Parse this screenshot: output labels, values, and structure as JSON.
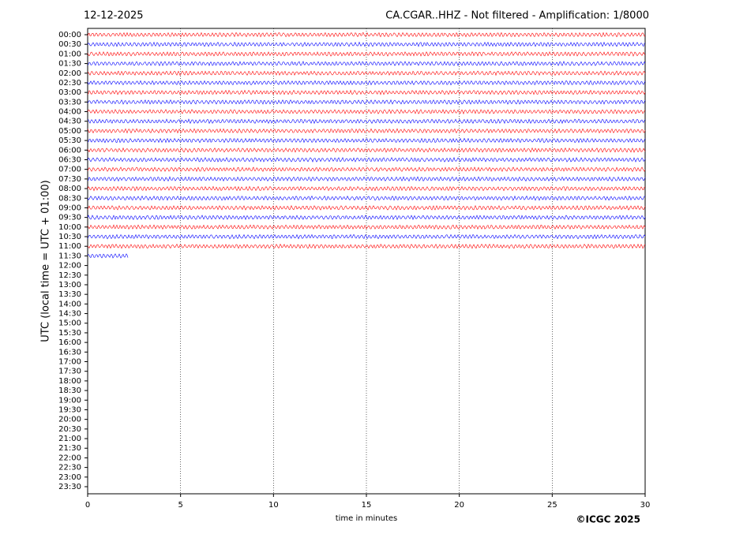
{
  "chart_data": {
    "type": "helicorder",
    "date": "12-12-2025",
    "title": "CA.CGAR..HHZ - Not filtered - Amplification: 1/8000",
    "xlabel": "time in minutes",
    "ylabel": "UTC (local time = UTC + 01:00)",
    "credit": "©ICGC 2025",
    "xlim": [
      0,
      30
    ],
    "xticks": [
      0,
      5,
      10,
      15,
      20,
      25,
      30
    ],
    "grid": true,
    "trace_colors": [
      "#ff0000",
      "#0000ff"
    ],
    "categories": [
      "00:00",
      "00:30",
      "01:00",
      "01:30",
      "02:00",
      "02:30",
      "03:00",
      "03:30",
      "04:00",
      "04:30",
      "05:00",
      "05:30",
      "06:00",
      "06:30",
      "07:00",
      "07:30",
      "08:00",
      "08:30",
      "09:00",
      "09:30",
      "10:00",
      "10:30",
      "11:00",
      "11:30",
      "12:00",
      "12:30",
      "13:00",
      "13:30",
      "14:00",
      "14:30",
      "15:00",
      "15:30",
      "16:00",
      "16:30",
      "17:00",
      "17:30",
      "18:00",
      "18:30",
      "19:00",
      "19:30",
      "20:00",
      "20:30",
      "21:00",
      "21:30",
      "22:00",
      "22:30",
      "23:00",
      "23:30"
    ],
    "trace_end": [
      30,
      30,
      30,
      30,
      30,
      30,
      30,
      30,
      30,
      30,
      30,
      30,
      30,
      30,
      30,
      30,
      30,
      30,
      30,
      30,
      30,
      30,
      30,
      2.2,
      null,
      null,
      null,
      null,
      null,
      null,
      null,
      null,
      null,
      null,
      null,
      null,
      null,
      null,
      null,
      null,
      null,
      null,
      null,
      null,
      null,
      null,
      null,
      null
    ]
  }
}
